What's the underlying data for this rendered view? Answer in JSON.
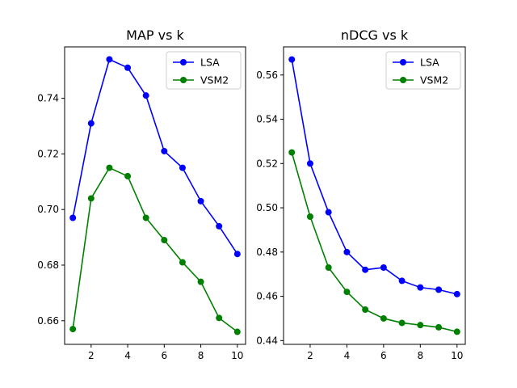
{
  "chart_data": [
    {
      "type": "line",
      "title": "MAP vs k",
      "xlabel": "",
      "ylabel": "",
      "x": [
        1,
        2,
        3,
        4,
        5,
        6,
        7,
        8,
        9,
        10
      ],
      "xlim": [
        0.55,
        10.45
      ],
      "ylim": [
        0.6515,
        0.7585
      ],
      "xticks": [
        2,
        4,
        6,
        8,
        10
      ],
      "xtick_labels": [
        "2",
        "4",
        "6",
        "8",
        "10"
      ],
      "yticks": [
        0.66,
        0.68,
        0.7,
        0.72,
        0.74
      ],
      "ytick_labels": [
        "0.66",
        "0.68",
        "0.70",
        "0.72",
        "0.74"
      ],
      "grid": false,
      "legend_position": "top-right",
      "series": [
        {
          "name": "LSA",
          "color": "#0000ff",
          "marker": "circle",
          "values": [
            0.697,
            0.731,
            0.754,
            0.751,
            0.741,
            0.721,
            0.715,
            0.703,
            0.694,
            0.684
          ]
        },
        {
          "name": "VSM2",
          "color": "#008000",
          "marker": "circle",
          "values": [
            0.657,
            0.704,
            0.715,
            0.712,
            0.697,
            0.689,
            0.681,
            0.674,
            0.661,
            0.656
          ]
        }
      ]
    },
    {
      "type": "line",
      "title": "nDCG vs k",
      "xlabel": "",
      "ylabel": "",
      "x": [
        1,
        2,
        3,
        4,
        5,
        6,
        7,
        8,
        9,
        10
      ],
      "xlim": [
        0.55,
        10.45
      ],
      "ylim": [
        0.4383,
        0.5727
      ],
      "xticks": [
        2,
        4,
        6,
        8,
        10
      ],
      "xtick_labels": [
        "2",
        "4",
        "6",
        "8",
        "10"
      ],
      "yticks": [
        0.44,
        0.46,
        0.48,
        0.5,
        0.52,
        0.54,
        0.56
      ],
      "ytick_labels": [
        "0.44",
        "0.46",
        "0.48",
        "0.50",
        "0.52",
        "0.54",
        "0.56"
      ],
      "grid": false,
      "legend_position": "top-right",
      "series": [
        {
          "name": "LSA",
          "color": "#0000ff",
          "marker": "circle",
          "values": [
            0.567,
            0.52,
            0.498,
            0.48,
            0.472,
            0.473,
            0.467,
            0.464,
            0.463,
            0.461
          ]
        },
        {
          "name": "VSM2",
          "color": "#008000",
          "marker": "circle",
          "values": [
            0.525,
            0.496,
            0.473,
            0.462,
            0.454,
            0.45,
            0.448,
            0.447,
            0.446,
            0.444
          ]
        }
      ]
    }
  ]
}
